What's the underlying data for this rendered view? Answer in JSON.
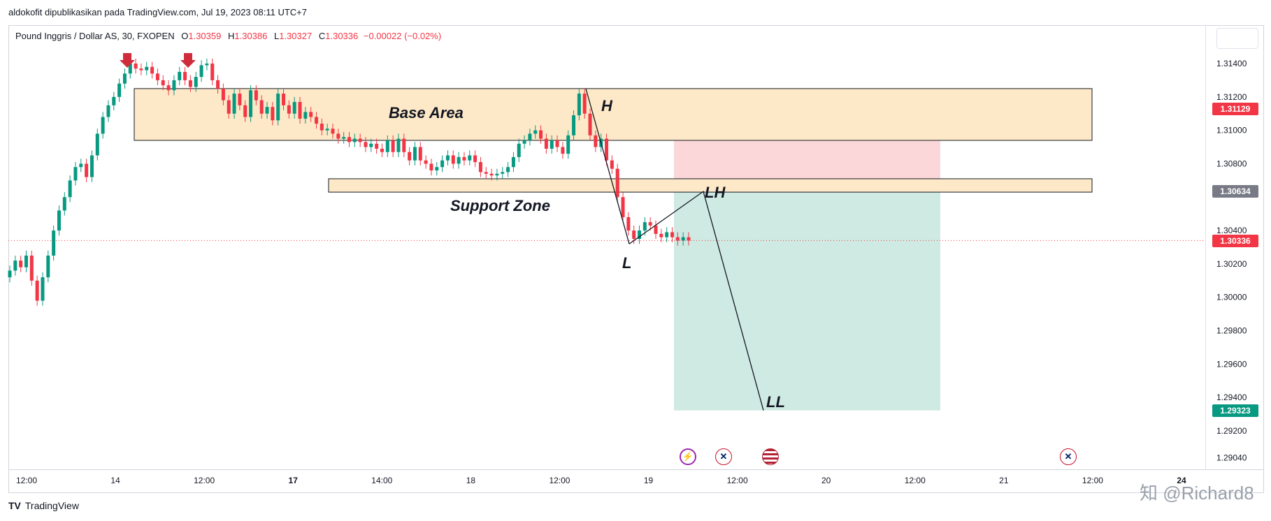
{
  "header": {
    "published_by": "aldokofit dipublikasikan pada TradingView.com, Jul 19, 2023 08:11 UTC+7"
  },
  "legend": {
    "symbol": "Pound Inggris / Dollar AS, 30, FXOPEN",
    "o_label": "O",
    "o_value": "1.30359",
    "h_label": "H",
    "h_value": "1.30386",
    "l_label": "L",
    "l_value": "1.30327",
    "c_label": "C",
    "c_value": "1.30336",
    "change": "−0.00022 (−0.02%)"
  },
  "colors": {
    "up": "#089981",
    "down": "#f23645",
    "price_line": "#f23645",
    "zone_fill": "#fde9c8",
    "target_fill": "#cfeae3",
    "stop_fill": "#fbd7d9"
  },
  "chart_data": {
    "type": "line",
    "title": "",
    "ylim": [
      1.2897,
      1.3163
    ],
    "y_ticks": [
      "1.31400",
      "1.31200",
      "1.31000",
      "1.30800",
      "1.30400",
      "1.30200",
      "1.30000",
      "1.29800",
      "1.29600",
      "1.29400",
      "1.29200",
      "1.29040"
    ],
    "x_ticks": [
      "12:00",
      "14",
      "12:00",
      "17",
      "14:00",
      "18",
      "12:00",
      "19",
      "12:00",
      "20",
      "12:00",
      "21",
      "12:00",
      "24"
    ],
    "price_tags": [
      {
        "value": "1.31129",
        "color": "#f23645"
      },
      {
        "value": "1.30634",
        "color": "#787b86"
      },
      {
        "value": "1.30336",
        "color": "#f23645"
      },
      {
        "value": "1.29323",
        "color": "#089981"
      }
    ],
    "series": [
      {
        "values": [
          1.3016,
          1.3022,
          1.3018,
          1.3025,
          1.301,
          1.2998,
          1.3012,
          1.3025,
          1.304,
          1.3052,
          1.306,
          1.307,
          1.3078,
          1.308,
          1.3072,
          1.3085,
          1.3098,
          1.3108,
          1.3115,
          1.312,
          1.3128,
          1.3134,
          1.314,
          1.3137,
          1.3136,
          1.3138,
          1.3134,
          1.313,
          1.3127,
          1.3124,
          1.313,
          1.3135,
          1.313,
          1.3126,
          1.3132,
          1.3139,
          1.314,
          1.313,
          1.3125,
          1.3118,
          1.311,
          1.3122,
          1.3115,
          1.3108,
          1.3124,
          1.3118,
          1.311,
          1.3114,
          1.3106,
          1.3122,
          1.3115,
          1.311,
          1.3117,
          1.3107,
          1.3111,
          1.3108,
          1.3104,
          1.31,
          1.3101,
          1.3098,
          1.3095,
          1.3096,
          1.3093,
          1.3095,
          1.3093,
          1.309,
          1.3092,
          1.3089,
          1.3087,
          1.3094,
          1.3087,
          1.3095,
          1.3087,
          1.3082,
          1.309,
          1.3082,
          1.308,
          1.3076,
          1.3078,
          1.3082,
          1.3085,
          1.308,
          1.3084,
          1.3082,
          1.3085,
          1.3081,
          1.3075,
          1.3074,
          1.3073,
          1.3074,
          1.3075,
          1.3078,
          1.3084,
          1.3092,
          1.3094,
          1.3098,
          1.31,
          1.3095,
          1.3089,
          1.3094,
          1.309,
          1.3086,
          1.3097,
          1.3109,
          1.3122,
          1.311,
          1.3097,
          1.309,
          1.3095,
          1.3082,
          1.3077,
          1.306,
          1.3048,
          1.304,
          1.3035,
          1.304,
          1.3045,
          1.3043,
          1.3038,
          1.3036,
          1.3039,
          1.3036,
          1.3034,
          1.3036,
          1.3034
        ]
      }
    ],
    "zones": [
      {
        "label": "Base Area",
        "y_top": 1.3125,
        "y_bottom": 1.3094
      },
      {
        "label": "Support Zone",
        "y_top": 1.3071,
        "y_bottom": 1.3063
      }
    ],
    "position": {
      "entry": 1.30634,
      "stop": 1.31129,
      "target": 1.29323
    },
    "annotations": [
      "H",
      "L",
      "LH",
      "LL"
    ],
    "projection": [
      {
        "label": "L",
        "y": 1.3032
      },
      {
        "label": "LH",
        "y": 1.30634
      },
      {
        "label": "LL",
        "y": 1.29323
      }
    ]
  },
  "footer": {
    "logo_mark": "TV",
    "logo_text": "TradingView",
    "watermark": "知 @Richard8"
  }
}
